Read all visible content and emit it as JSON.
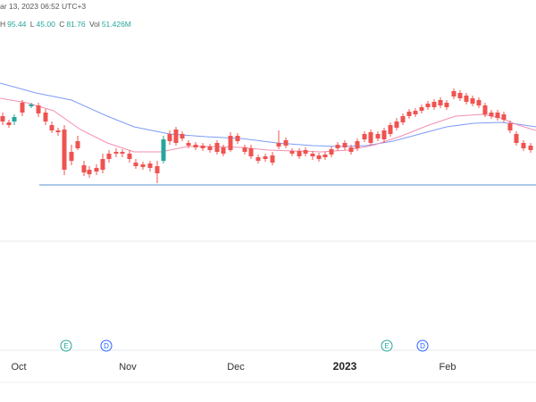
{
  "header": {
    "timestamp_text": "ar 13, 2023 06:52 UTC+3"
  },
  "ohlc": {
    "high_label": "H",
    "high_value": "95.44",
    "low_label": "L",
    "low_value": "45.00",
    "close_label": "C",
    "close_value": "81.76",
    "vol_label": "Vol",
    "vol_value": "51.426M"
  },
  "chart_data": {
    "type": "candlestick",
    "x_axis_labels": [
      "Oct",
      "Nov",
      "Dec",
      "2023",
      "Feb"
    ],
    "event_markers": [
      "E",
      "D",
      "E",
      "D"
    ],
    "series": [
      {
        "name": "",
        "kind": "candles"
      },
      {
        "name": "",
        "kind": "moving-average"
      },
      {
        "name": "",
        "kind": "moving-average"
      }
    ]
  },
  "colors": {
    "up": "#26a69a",
    "down": "#ef5350",
    "ma_fast": "#f48fb1",
    "ma_slow": "#7e9cf5",
    "hline": "#5b8fd6"
  }
}
